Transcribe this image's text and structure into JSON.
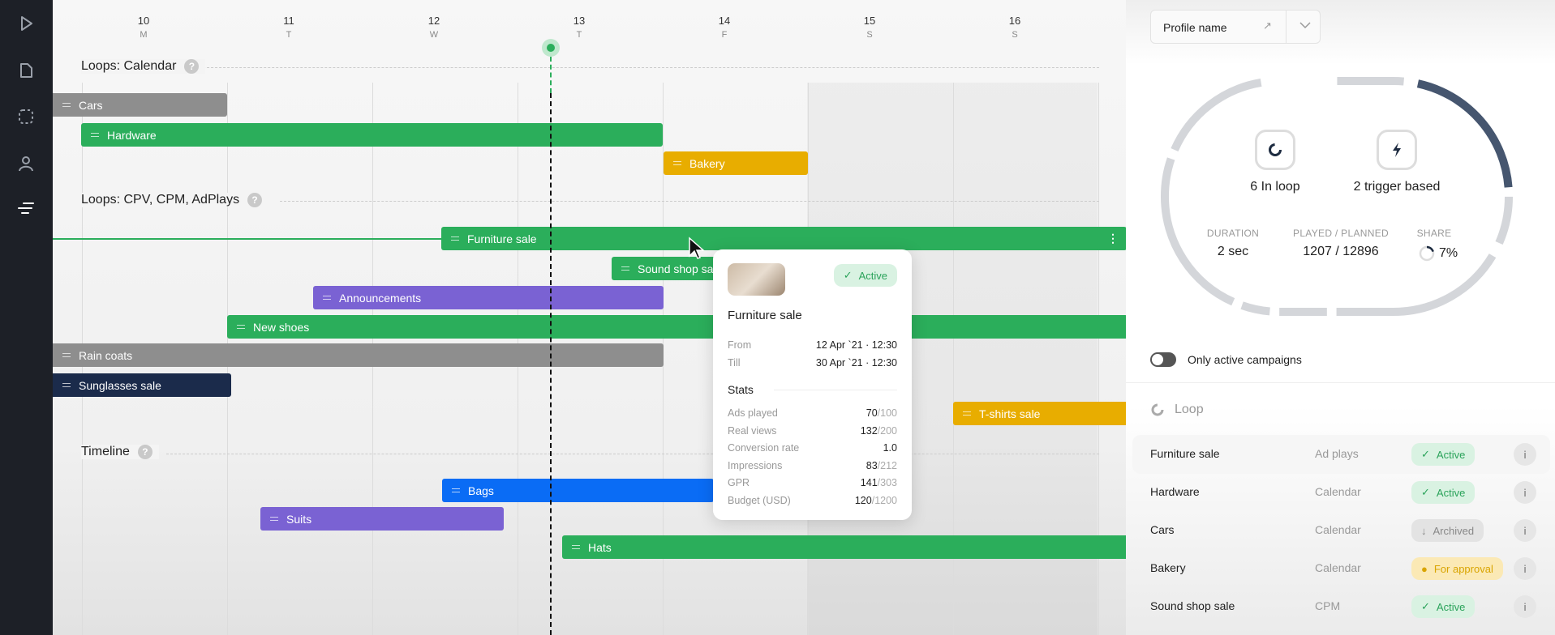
{
  "sidebar": {
    "items": [
      {
        "icon": "play-icon"
      },
      {
        "icon": "document-icon"
      },
      {
        "icon": "dashed-square-icon"
      },
      {
        "icon": "user-icon"
      },
      {
        "icon": "timeline-icon",
        "active": true
      }
    ]
  },
  "days": [
    {
      "num": "10",
      "wd": "M"
    },
    {
      "num": "11",
      "wd": "T"
    },
    {
      "num": "12",
      "wd": "W"
    },
    {
      "num": "13",
      "wd": "T"
    },
    {
      "num": "14",
      "wd": "F"
    },
    {
      "num": "15",
      "wd": "S"
    },
    {
      "num": "16",
      "wd": "S"
    }
  ],
  "sections": [
    {
      "title": "Loops: Calendar",
      "help": "?"
    },
    {
      "title": "Loops: CPV, CPM, AdPlays",
      "help": "?"
    },
    {
      "title": "Timeline",
      "help": "?"
    }
  ],
  "colors": {
    "gray": "#8e8e8e",
    "green": "#2bae5b",
    "yellow": "#e8ad00",
    "purple": "#7a62d3",
    "navy": "#1b2b4b",
    "blue": "#0a6cf5",
    "now": "#2bae5b"
  },
  "bars": [
    {
      "label": "Cars",
      "color": "gray"
    },
    {
      "label": "Hardware",
      "color": "green"
    },
    {
      "label": "Bakery",
      "color": "yellow"
    },
    {
      "label": "Furniture sale",
      "color": "green"
    },
    {
      "label": "Sound shop sale",
      "color": "green"
    },
    {
      "label": "Announcements",
      "color": "purple"
    },
    {
      "label": "New shoes",
      "color": "green"
    },
    {
      "label": "Rain coats",
      "color": "gray"
    },
    {
      "label": "Sunglasses sale",
      "color": "navy"
    },
    {
      "label": "T-shirts sale",
      "color": "yellow"
    },
    {
      "label": "Bags",
      "color": "blue"
    },
    {
      "label": "Suits",
      "color": "purple"
    },
    {
      "label": "Hats",
      "color": "green"
    }
  ],
  "tooltip": {
    "status": "Active",
    "title": "Furniture sale",
    "from_label": "From",
    "from": "12 Apr `21 · 12:30",
    "till_label": "Till",
    "till": "30 Apr `21 · 12:30",
    "stats_label": "Stats",
    "stats": [
      {
        "label": "Ads played",
        "value": "70",
        "total": "/100"
      },
      {
        "label": "Real views",
        "value": "132",
        "total": "/200"
      },
      {
        "label": "Conversion rate",
        "value": "1.0",
        "total": ""
      },
      {
        "label": "Impressions",
        "value": "83",
        "total": "/212"
      },
      {
        "label": "GPR",
        "value": "141",
        "total": "/303"
      },
      {
        "label": "Budget (USD)",
        "value": "120",
        "total": "/1200"
      }
    ]
  },
  "right": {
    "profile": "Profile name",
    "in_loop": "6 In loop",
    "trigger": "2 trigger based",
    "duration_label": "DURATION",
    "duration": "2 sec",
    "played_label": "PLAYED / PLANNED",
    "played": "1207 / 12896",
    "share_label": "SHARE",
    "share": "7%",
    "share_fraction": 0.07,
    "toggle_label": "Only active campaigns",
    "toggle_on": false,
    "loop_title": "Loop",
    "rows": [
      {
        "name": "Furniture sale",
        "type": "Ad plays",
        "status": "Active",
        "kind": "active"
      },
      {
        "name": "Hardware",
        "type": "Calendar",
        "status": "Active",
        "kind": "active"
      },
      {
        "name": "Cars",
        "type": "Calendar",
        "status": "Archived",
        "kind": "arch"
      },
      {
        "name": "Bakery",
        "type": "Calendar",
        "status": "For approval",
        "kind": "appr"
      },
      {
        "name": "Sound shop sale",
        "type": "CPM",
        "status": "Active",
        "kind": "active"
      }
    ]
  }
}
